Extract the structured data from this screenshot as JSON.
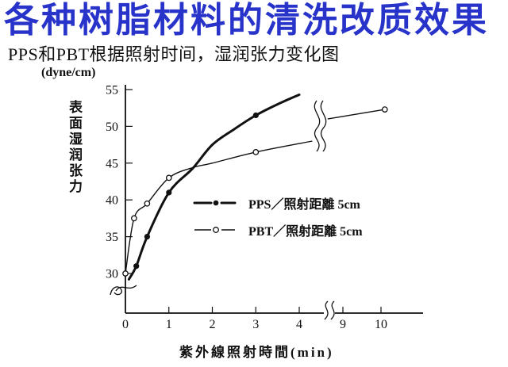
{
  "title": {
    "text": "各种树脂材料的清洗改质效果",
    "color": "#2733c9"
  },
  "subtitle": "PPS和PBT根据照射时间，湿润张力变化图",
  "chart_data": {
    "type": "line",
    "y_unit_label": "(dyne/cm)",
    "y_axis_label": "表面湿润张力",
    "x_axis_label": "紫外線照射時間(min)",
    "y_ticks": [
      30,
      35,
      40,
      45,
      50,
      55
    ],
    "x_ticks": [
      0,
      1,
      2,
      3,
      4
    ],
    "x_ticks_after_break": [
      9,
      10
    ],
    "ylim": [
      30,
      55
    ],
    "grid": false,
    "legend_position": "center-right",
    "axis_breaks": {
      "x_axis": true,
      "y_axis_low": true,
      "curve": true
    },
    "series": [
      {
        "name": "PPS",
        "legend_label": "PPS／照射距離 5cm",
        "marker": "filled-circle",
        "line_style": "thick",
        "points": [
          [
            0.25,
            31
          ],
          [
            0.5,
            35
          ],
          [
            1,
            41
          ],
          [
            3,
            51.5
          ]
        ],
        "curve": [
          [
            0.08,
            29.2
          ],
          [
            0.25,
            31
          ],
          [
            0.5,
            35
          ],
          [
            1,
            41
          ],
          [
            1.55,
            44.3
          ],
          [
            2,
            47.5
          ],
          [
            2.5,
            49.6
          ],
          [
            3,
            51.5
          ],
          [
            3.5,
            53
          ],
          [
            4,
            54.3
          ]
        ]
      },
      {
        "name": "PBT",
        "legend_label": "PBT／照射距離 5cm",
        "marker": "open-circle",
        "line_style": "thin",
        "points": [
          [
            0,
            30
          ],
          [
            0.2,
            37.5
          ],
          [
            0.5,
            39.5
          ],
          [
            1,
            43
          ],
          [
            3,
            46.5
          ],
          [
            10.1,
            52.3
          ]
        ],
        "curve": [
          [
            0,
            30
          ],
          [
            0.2,
            37.5
          ],
          [
            0.5,
            39.5
          ],
          [
            1,
            43
          ],
          [
            1.55,
            44.4
          ],
          [
            2,
            45
          ],
          [
            3,
            46.5
          ],
          [
            4.3,
            48
          ]
        ],
        "curve_after_break": [
          [
            8.6,
            51
          ],
          [
            10.1,
            52.3
          ]
        ]
      }
    ]
  }
}
